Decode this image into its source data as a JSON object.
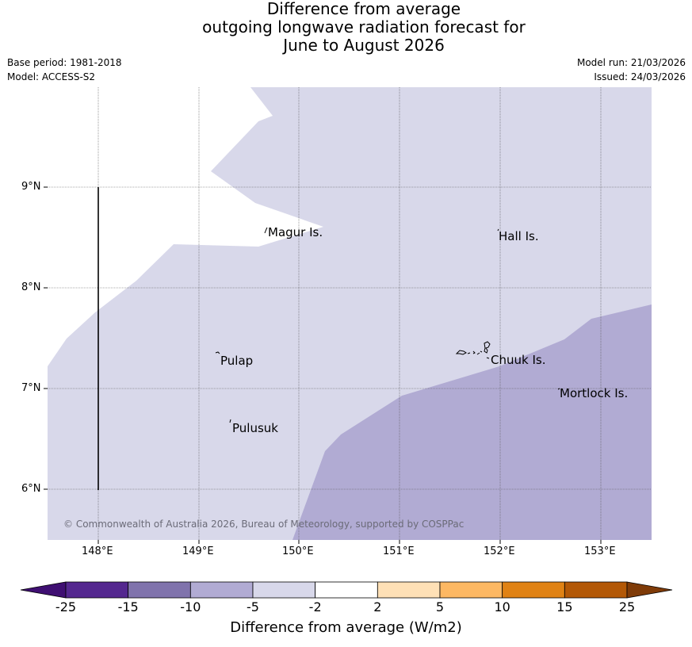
{
  "title": {
    "line1": "Difference from average",
    "line2": "outgoing longwave radiation forecast for",
    "line3": "June to August 2026"
  },
  "meta": {
    "base_period": "Base period: 1981-2018",
    "model": "Model: ACCESS-S2",
    "model_run": "Model run: 21/03/2026",
    "issued": "Issued: 24/03/2026"
  },
  "map": {
    "lat_labels": [
      "9°N",
      "8°N",
      "7°N",
      "6°N"
    ],
    "lon_labels": [
      "148°E",
      "149°E",
      "150°E",
      "151°E",
      "152°E",
      "153°E"
    ],
    "places": [
      "Magur Is.",
      "Hall Is.",
      "Pulap",
      "Chuuk Is.",
      "Mortlock Is.",
      "Pulusuk"
    ],
    "copyright": "© Commonwealth of Australia 2026, Bureau of Meteorology, supported by COSPPac",
    "colors": {
      "band_minus5_minus2": "#d8d8ea",
      "band_minus10_minus5": "#b1abd3",
      "land": "#000000"
    }
  },
  "colorbar": {
    "ticks": [
      "-25",
      "-15",
      "-10",
      "-5",
      "-2",
      "2",
      "5",
      "10",
      "15",
      "25"
    ],
    "colors": [
      "#3f0f72",
      "#54278f",
      "#8073ac",
      "#b1abd3",
      "#d8d8ea",
      "#ffffff",
      "#fee0b6",
      "#fdb863",
      "#e08214",
      "#b35806",
      "#7f3b08"
    ],
    "label": "Difference from average (W/m2)"
  }
}
